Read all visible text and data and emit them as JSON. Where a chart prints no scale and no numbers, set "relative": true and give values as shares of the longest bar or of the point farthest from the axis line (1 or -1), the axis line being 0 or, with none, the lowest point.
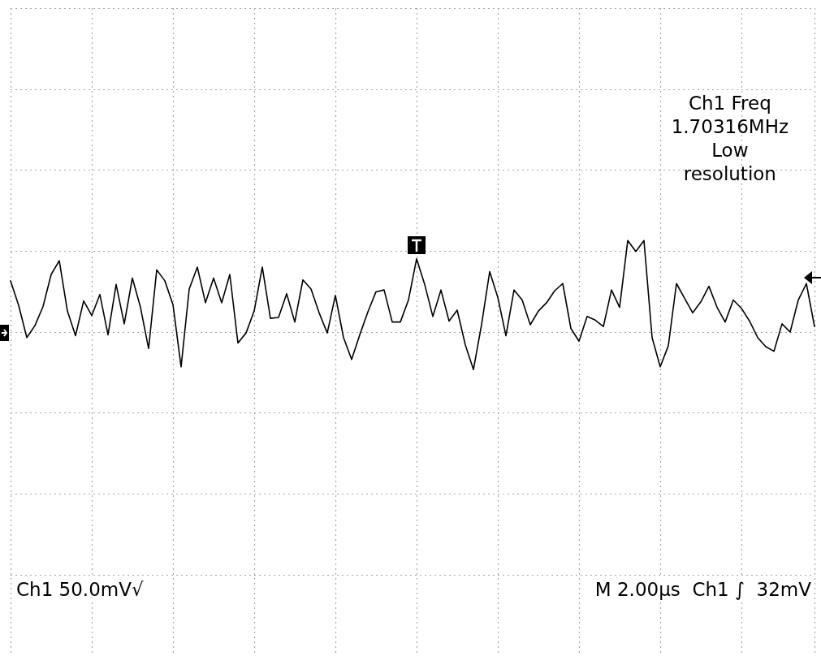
{
  "chart_data": {
    "type": "line",
    "relative": true,
    "grid": true,
    "marker": "none",
    "line_style": "solid",
    "tick_labels": false,
    "categories": [
      null,
      null,
      null,
      null,
      null,
      null,
      null,
      null,
      null,
      null,
      null,
      null,
      null,
      null,
      null,
      null,
      null,
      null,
      null,
      null,
      null,
      null,
      null,
      null,
      null,
      null,
      null,
      null,
      null,
      null,
      null,
      null,
      null,
      null,
      null,
      null,
      null,
      null,
      null,
      null,
      null,
      null,
      null,
      null,
      null,
      null,
      null,
      null,
      null,
      null,
      null,
      null,
      null,
      null,
      null,
      null,
      null,
      null,
      null,
      null,
      null,
      null,
      null,
      null,
      null,
      null,
      null,
      null,
      null,
      null,
      null,
      null,
      null,
      null,
      null,
      null,
      null,
      null,
      null,
      null,
      null,
      null,
      null,
      null,
      null,
      null,
      null,
      null,
      null,
      null,
      null,
      null,
      null,
      null,
      null,
      null,
      null,
      null,
      null,
      null
    ],
    "annotations": [
      "Ch1 Freq\n1.70316MHz\nLow\nresolution",
      "Ch1 50.0mV√",
      "M 2.00µs  Ch1 ∫  32mV"
    ],
    "series": [
      {
        "color": "#000000",
        "values": [
          0.56,
          0.29,
          -0.06,
          0.07,
          0.28,
          0.63,
          0.78,
          0.23,
          -0.04,
          0.34,
          0.18,
          0.41,
          -0.03,
          0.52,
          0.09,
          0.59,
          0.27,
          -0.18,
          0.68,
          0.56,
          0.3,
          -0.38,
          0.47,
          0.71,
          0.32,
          0.59,
          0.32,
          0.63,
          -0.12,
          -0.01,
          0.23,
          0.71,
          0.15,
          0.16,
          0.42,
          0.11,
          0.57,
          0.47,
          0.21,
          -0.01,
          0.4,
          -0.06,
          -0.3,
          -0.03,
          0.22,
          0.44,
          0.46,
          0.11,
          0.11,
          0.35,
          0.8,
          0.52,
          0.17,
          0.46,
          0.12,
          0.24,
          -0.14,
          -0.41,
          0.08,
          0.66,
          0.38,
          -0.04,
          0.46,
          0.35,
          0.08,
          0.23,
          0.32,
          0.45,
          0.53,
          0.04,
          -0.1,
          0.17,
          0.13,
          0.06,
          0.46,
          0.27,
          1.0,
          0.88,
          1.0,
          -0.06,
          -0.38,
          -0.15,
          0.53,
          0.37,
          0.21,
          0.33,
          0.5,
          0.27,
          0.11,
          0.35,
          0.26,
          0.12,
          -0.06,
          -0.16,
          -0.21,
          0.09,
          0,
          0.35,
          0.53,
          0.06
        ]
      }
    ]
  }
}
